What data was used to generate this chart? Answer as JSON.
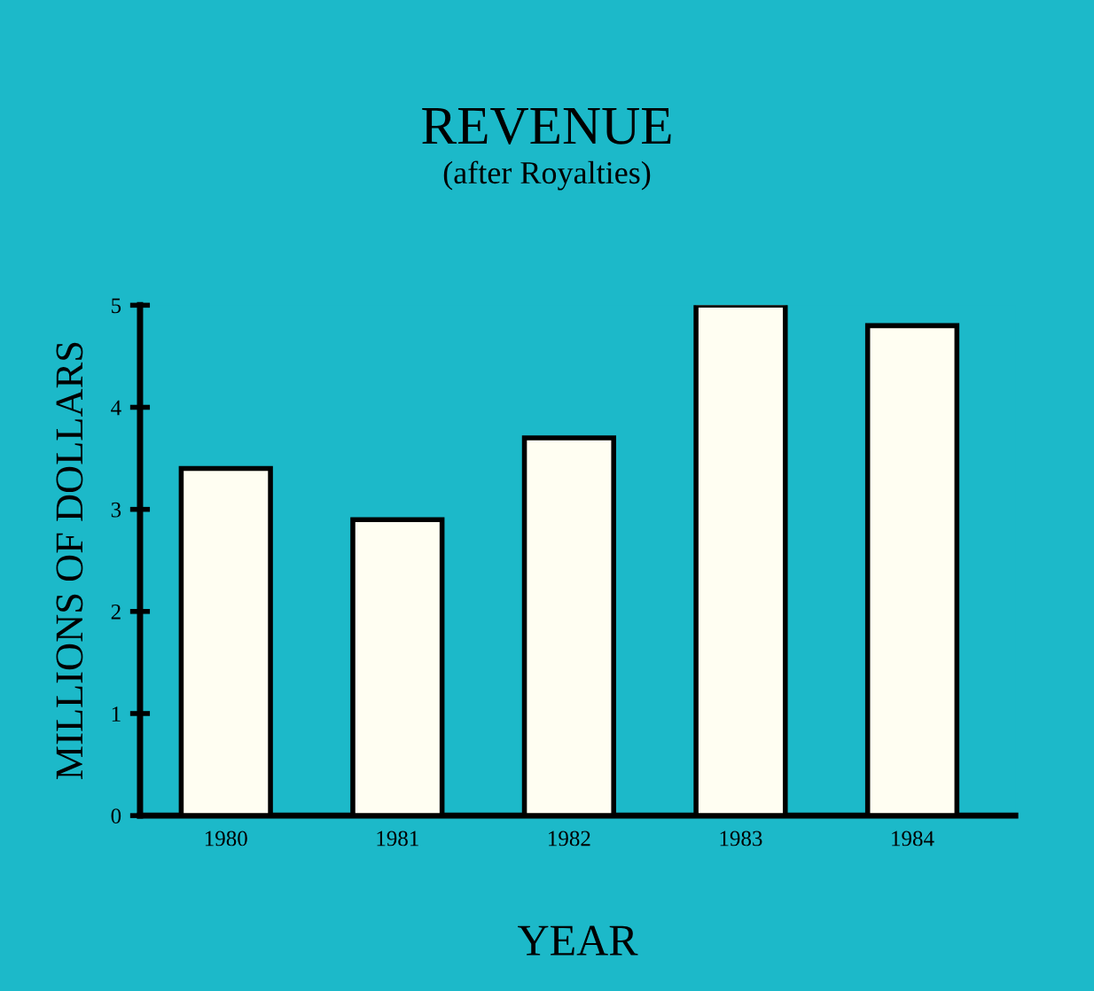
{
  "chart_data": {
    "type": "bar",
    "title": "REVENUE",
    "subtitle": "(after Royalties)",
    "xlabel": "YEAR",
    "ylabel": "MILLIONS OF DOLLARS",
    "categories": [
      "1980",
      "1981",
      "1982",
      "1983",
      "1984"
    ],
    "values": [
      3.4,
      2.9,
      3.7,
      5.0,
      4.8
    ],
    "color": "#fffef2",
    "ylim": [
      0,
      5
    ],
    "yticks": [
      0,
      1,
      2,
      3,
      4,
      5
    ],
    "grid": false,
    "legend": false
  }
}
